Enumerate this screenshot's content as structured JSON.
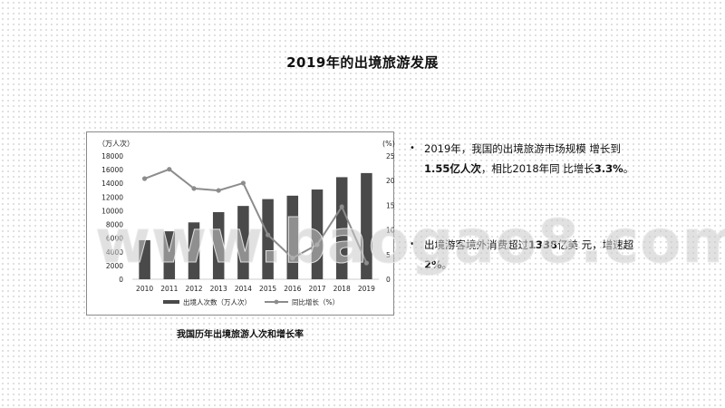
{
  "page": {
    "title": "2019年的出境旅游发展",
    "caption": "我国历年出境旅游人次和增长率",
    "watermark": "www.baogao8.com"
  },
  "bullets": [
    {
      "icon": "bullet-dot",
      "parts": [
        "2019年，我国的出境旅游市场规模 增长到",
        "1.55亿人次",
        "，相比2018年同 比增长",
        "3.3%",
        "。"
      ]
    },
    {
      "icon": "bullet-dot",
      "parts": [
        "出境游客境外消费超过",
        "1338",
        "亿美 元，增速超",
        "2%",
        "。"
      ]
    }
  ],
  "chart_data": {
    "type": "bar+line",
    "categories": [
      "2010",
      "2011",
      "2012",
      "2013",
      "2014",
      "2015",
      "2016",
      "2017",
      "2018",
      "2019"
    ],
    "series": [
      {
        "name": "出境人次数（万人次）",
        "type": "bar",
        "axis": "left",
        "values": [
          5700,
          7000,
          8300,
          9800,
          10700,
          11700,
          12200,
          13100,
          14900,
          15500
        ]
      },
      {
        "name": "同比增长（%）",
        "type": "line",
        "axis": "right",
        "values": [
          20.4,
          22.3,
          18.4,
          18.0,
          19.5,
          9.0,
          4.3,
          7.0,
          14.7,
          3.3
        ]
      }
    ],
    "left_axis": {
      "label": "（万人次）",
      "ticks": [
        0,
        2000,
        4000,
        6000,
        8000,
        10000,
        12000,
        14000,
        16000,
        18000
      ],
      "range": [
        0,
        18000
      ]
    },
    "right_axis": {
      "label": "(%)",
      "ticks": [
        0,
        5,
        10,
        15,
        20,
        25
      ],
      "range": [
        0,
        25
      ]
    },
    "legend_position": "bottom",
    "colors": {
      "bar": "#4a4a4a",
      "line": "#8c8c8c",
      "text": "#222222"
    }
  }
}
